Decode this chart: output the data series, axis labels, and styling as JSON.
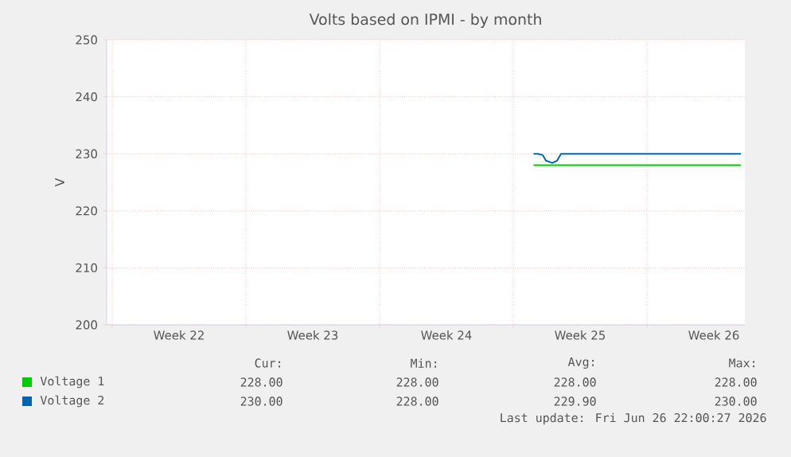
{
  "chart_data": {
    "type": "line",
    "title": "Volts based on IPMI - by month",
    "ylabel": "V",
    "xlim": [
      "2026-05-24T17:00",
      "2026-06-27T03:00"
    ],
    "ylim": [
      200,
      250
    ],
    "yticks": [
      200,
      210,
      220,
      230,
      240,
      250
    ],
    "xticks": [
      {
        "value": "2026-05-25",
        "label": null
      },
      {
        "value": "2026-05-28T12:00",
        "label": "Week 22"
      },
      {
        "value": "2026-06-01",
        "label": null
      },
      {
        "value": "2026-06-04T12:00",
        "label": "Week 23"
      },
      {
        "value": "2026-06-08",
        "label": null
      },
      {
        "value": "2026-06-11T12:00",
        "label": "Week 24"
      },
      {
        "value": "2026-06-15",
        "label": null
      },
      {
        "value": "2026-06-18T12:00",
        "label": "Week 25"
      },
      {
        "value": "2026-06-22",
        "label": null
      },
      {
        "value": "2026-06-25T12:00",
        "label": "Week 26"
      }
    ],
    "grid": true,
    "legend": "bottom",
    "series": [
      {
        "name": "Voltage 1",
        "color": "#00cc00",
        "x": [
          "2026-06-16T01:30",
          "2026-06-26T22:00"
        ],
        "values": [
          228,
          228
        ]
      },
      {
        "name": "Voltage 2",
        "color": "#0066b3",
        "x": [
          "2026-06-16T01:30",
          "2026-06-16T07:00",
          "2026-06-16T13:00",
          "2026-06-16T17:00",
          "2026-06-17T01:00",
          "2026-06-17T07:00",
          "2026-06-17T12:00",
          "2026-06-26T22:00"
        ],
        "values": [
          230,
          230,
          229.8,
          228.8,
          228.4,
          228.8,
          230,
          230
        ]
      }
    ],
    "annotations": [
      "Cur:",
      "Min:",
      "Avg:",
      "Max:",
      "228.00",
      "228.00",
      "228.00",
      "228.00",
      "230.00",
      "228.00",
      "229.90",
      "230.00",
      "Last update: Fri Jun 26 22:00:27 2026"
    ]
  }
}
